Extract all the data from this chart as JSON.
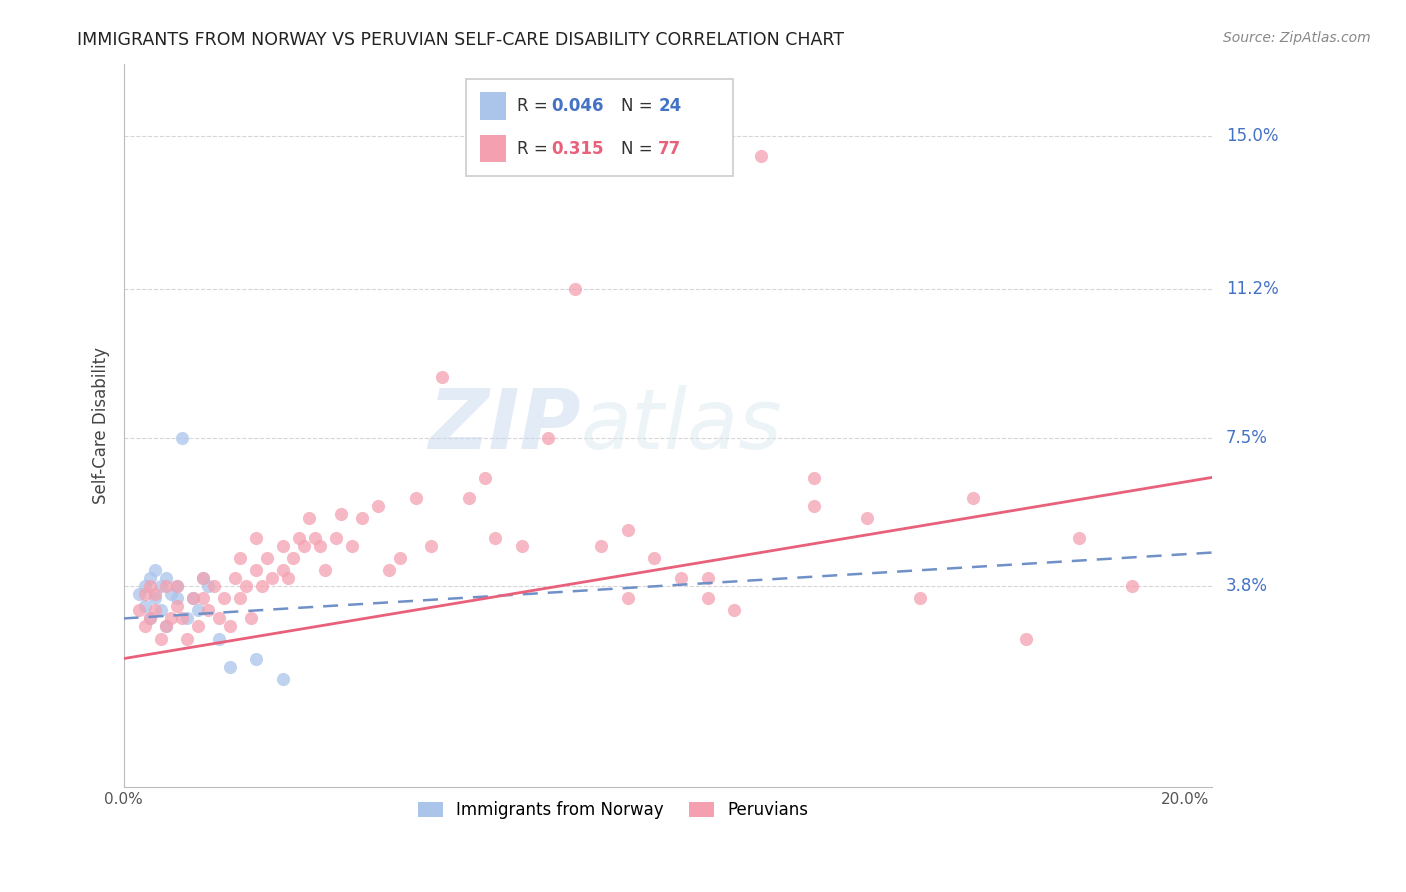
{
  "title": "IMMIGRANTS FROM NORWAY VS PERUVIAN SELF-CARE DISABILITY CORRELATION CHART",
  "source": "Source: ZipAtlas.com",
  "ylabel": "Self-Care Disability",
  "ytick_labels": [
    "15.0%",
    "11.2%",
    "7.5%",
    "3.8%"
  ],
  "ytick_values": [
    0.15,
    0.112,
    0.075,
    0.038
  ],
  "xlim": [
    0.0,
    0.205
  ],
  "ylim": [
    -0.012,
    0.168
  ],
  "legend_r_norway": "0.046",
  "legend_n_norway": "24",
  "legend_r_peruvian": "0.315",
  "legend_n_peruvian": "77",
  "norway_color": "#aac4ea",
  "peruvian_color": "#f4a0b0",
  "norway_line_color": "#7090c8",
  "peruvian_line_color": "#e8607a",
  "background_color": "#ffffff",
  "watermark_color": "#dce8f5",
  "norway_x": [
    0.003,
    0.004,
    0.004,
    0.005,
    0.005,
    0.006,
    0.006,
    0.007,
    0.007,
    0.008,
    0.008,
    0.009,
    0.01,
    0.01,
    0.011,
    0.012,
    0.013,
    0.014,
    0.015,
    0.016,
    0.018,
    0.02,
    0.025,
    0.03
  ],
  "norway_y": [
    0.036,
    0.033,
    0.038,
    0.03,
    0.04,
    0.035,
    0.042,
    0.032,
    0.038,
    0.028,
    0.04,
    0.036,
    0.038,
    0.035,
    0.075,
    0.03,
    0.035,
    0.032,
    0.04,
    0.038,
    0.025,
    0.018,
    0.02,
    0.015
  ],
  "peruvian_x": [
    0.003,
    0.004,
    0.004,
    0.005,
    0.005,
    0.006,
    0.006,
    0.007,
    0.008,
    0.008,
    0.009,
    0.01,
    0.01,
    0.011,
    0.012,
    0.013,
    0.014,
    0.015,
    0.015,
    0.016,
    0.017,
    0.018,
    0.019,
    0.02,
    0.021,
    0.022,
    0.022,
    0.023,
    0.024,
    0.025,
    0.025,
    0.026,
    0.027,
    0.028,
    0.03,
    0.03,
    0.031,
    0.032,
    0.033,
    0.034,
    0.035,
    0.036,
    0.037,
    0.038,
    0.04,
    0.041,
    0.043,
    0.045,
    0.048,
    0.05,
    0.052,
    0.055,
    0.058,
    0.06,
    0.065,
    0.068,
    0.07,
    0.075,
    0.08,
    0.085,
    0.09,
    0.095,
    0.1,
    0.105,
    0.11,
    0.115,
    0.12,
    0.13,
    0.14,
    0.15,
    0.16,
    0.17,
    0.18,
    0.19,
    0.095,
    0.11,
    0.13
  ],
  "peruvian_y": [
    0.032,
    0.028,
    0.036,
    0.03,
    0.038,
    0.032,
    0.036,
    0.025,
    0.028,
    0.038,
    0.03,
    0.033,
    0.038,
    0.03,
    0.025,
    0.035,
    0.028,
    0.035,
    0.04,
    0.032,
    0.038,
    0.03,
    0.035,
    0.028,
    0.04,
    0.035,
    0.045,
    0.038,
    0.03,
    0.042,
    0.05,
    0.038,
    0.045,
    0.04,
    0.042,
    0.048,
    0.04,
    0.045,
    0.05,
    0.048,
    0.055,
    0.05,
    0.048,
    0.042,
    0.05,
    0.056,
    0.048,
    0.055,
    0.058,
    0.042,
    0.045,
    0.06,
    0.048,
    0.09,
    0.06,
    0.065,
    0.05,
    0.048,
    0.075,
    0.112,
    0.048,
    0.052,
    0.045,
    0.04,
    0.035,
    0.032,
    0.145,
    0.058,
    0.055,
    0.035,
    0.06,
    0.025,
    0.05,
    0.038,
    0.035,
    0.04,
    0.065
  ],
  "norway_slope": 0.08,
  "norway_intercept": 0.03,
  "peruvian_slope": 0.22,
  "peruvian_intercept": 0.02
}
